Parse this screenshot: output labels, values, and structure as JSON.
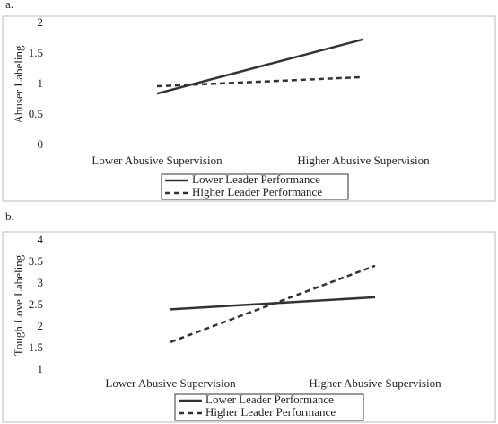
{
  "chart_data": [
    {
      "type": "line",
      "panel_label": "a.",
      "y_label": "Abuser Labeling",
      "categories": [
        "Lower Abusive Supervision",
        "Higher Abusive Supervision"
      ],
      "series": [
        {
          "name": "Lower Leader Performance",
          "color": "#333333",
          "line_style": "solid",
          "values": [
            0.85,
            1.74
          ]
        },
        {
          "name": "Higher Leader Performance",
          "color": "#333333",
          "line_style": "dashed",
          "values": [
            0.97,
            1.12
          ]
        }
      ],
      "ylim": [
        0,
        2
      ],
      "yticks": [
        0,
        0.5,
        1,
        1.5,
        2
      ],
      "grid": false
    },
    {
      "type": "line",
      "panel_label": "b.",
      "y_label": "Tough Love Labeling",
      "categories": [
        "Lower Abusive Supervision",
        "Higher Abusive Supervision"
      ],
      "series": [
        {
          "name": "Lower Leader Performance",
          "color": "#333333",
          "line_style": "solid",
          "values": [
            2.41,
            2.69
          ]
        },
        {
          "name": "Higher Leader Performance",
          "color": "#333333",
          "line_style": "dashed",
          "values": [
            1.65,
            3.42
          ]
        }
      ],
      "ylim": [
        1,
        4
      ],
      "yticks": [
        1,
        1.5,
        2,
        2.5,
        3,
        3.5,
        4
      ],
      "grid": false
    }
  ]
}
